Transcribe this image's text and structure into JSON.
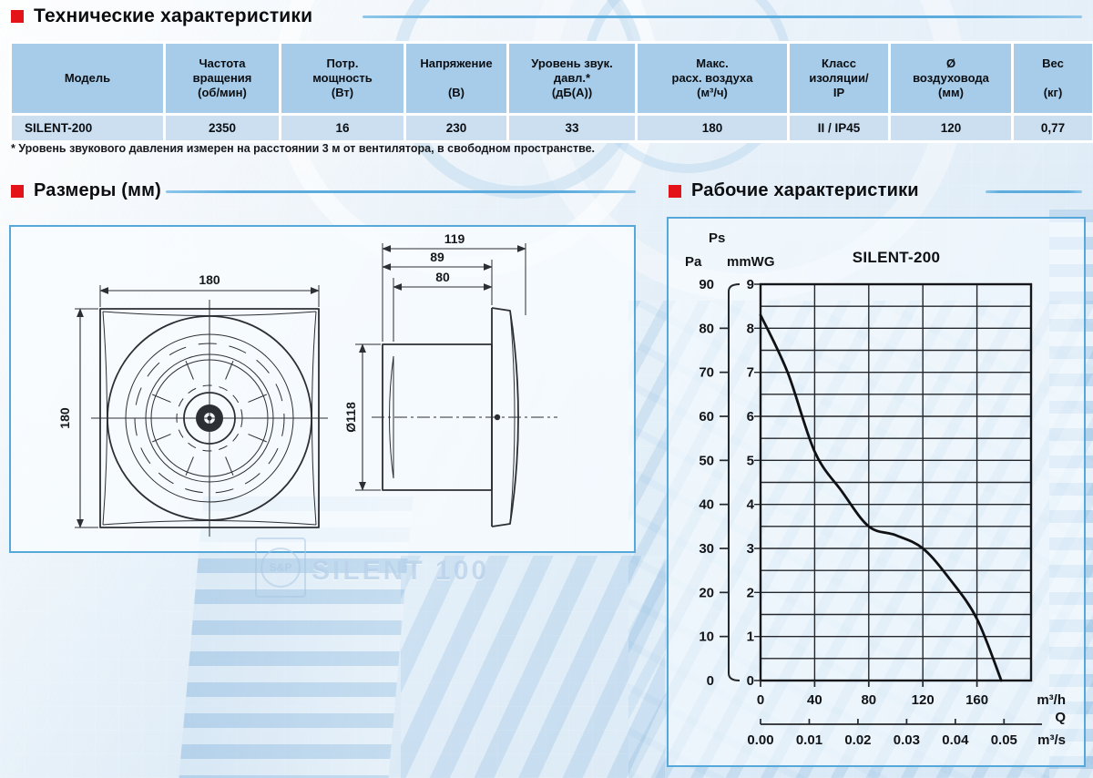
{
  "sections": {
    "tech_title": "Технические характеристики",
    "dimensions_title": "Размеры (мм)",
    "performance_title": "Рабочие характеристики"
  },
  "spec_table": {
    "columns": [
      {
        "lines": [
          "Модель"
        ]
      },
      {
        "lines": [
          "Частота",
          "вращения",
          "(об/мин)"
        ]
      },
      {
        "lines": [
          "Потр.",
          "мощность",
          "(Вт)"
        ]
      },
      {
        "lines": [
          "Напряжение",
          "",
          "(В)"
        ]
      },
      {
        "lines": [
          "Уровень звук.",
          "давл.*",
          "(дБ(А))"
        ]
      },
      {
        "lines": [
          "Макс.",
          "расх. воздуха",
          "(м³/ч)"
        ]
      },
      {
        "lines": [
          "Класс",
          "изоляции/",
          "IP"
        ]
      },
      {
        "lines": [
          "Ø",
          "воздуховода",
          "(мм)"
        ]
      },
      {
        "lines": [
          "Вес",
          "",
          "(кг)"
        ]
      }
    ],
    "rows": [
      [
        "SILENT-200",
        "2350",
        "16",
        "230",
        "33",
        "180",
        "II / IP45",
        "120",
        "0,77"
      ]
    ]
  },
  "footnote": "* Уровень звукового давления измерен на расстоянии 3 м от вентилятора, в свободном пространстве.",
  "drawing": {
    "front_width": "180",
    "front_height": "180",
    "side_depth": "119",
    "side_dim_89": "89",
    "side_dim_80": "80",
    "duct_diameter": "Ø118",
    "watermark_logo": "S&P",
    "watermark_text": "SILENT 100"
  },
  "chart_data": {
    "type": "line",
    "title": "SILENT-200",
    "axis_corner_label": "Ps",
    "y_primary": {
      "label": "Pa",
      "min": 0,
      "max": 90,
      "tick_step": 10
    },
    "y_secondary": {
      "label": "mmWG",
      "min": 0,
      "max": 9,
      "tick_step": 1,
      "grid_step": 0.5
    },
    "x": {
      "label": "m³/h",
      "min": 0,
      "max": 200,
      "grid_step": 40,
      "ticks": [
        0,
        40,
        80,
        120,
        160
      ]
    },
    "x_secondary": {
      "label": "m³/s",
      "axis_name": "Q",
      "ticks": [
        "0.00",
        "0.01",
        "0.02",
        "0.03",
        "0.04",
        "0.05"
      ],
      "m3h_per_unit": 3600
    },
    "legend_position": "none",
    "grid": true,
    "series": [
      {
        "name": "SILENT-200",
        "points": [
          [
            0,
            8.3
          ],
          [
            20,
            7.0
          ],
          [
            40,
            5.2
          ],
          [
            60,
            4.3
          ],
          [
            80,
            3.5
          ],
          [
            100,
            3.3
          ],
          [
            120,
            3.0
          ],
          [
            140,
            2.3
          ],
          [
            160,
            1.4
          ],
          [
            178,
            0
          ]
        ]
      }
    ]
  }
}
